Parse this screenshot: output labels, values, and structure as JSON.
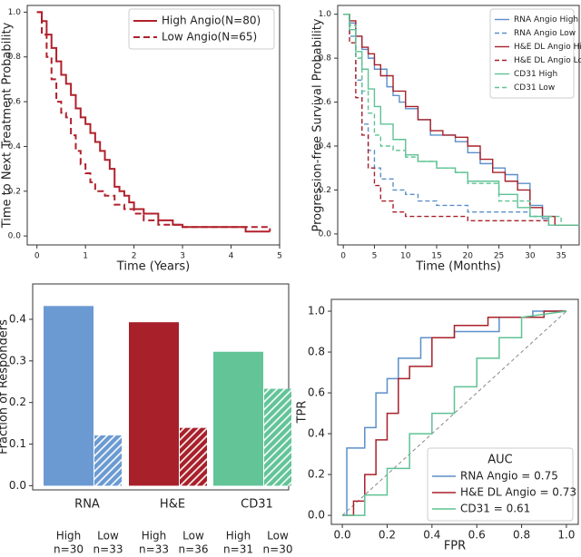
{
  "chart_data": [
    {
      "type": "line",
      "drawstyle": "steps-post",
      "xlabel": "Time (Years)",
      "ylabel": "Time to Next Treatment Probability",
      "xlim": [
        -0.2,
        5.0
      ],
      "ylim": [
        -0.04,
        1.03
      ],
      "xticks": [
        0,
        1,
        2,
        3,
        4,
        5
      ],
      "yticks": [
        {
          "value": 0,
          "label": "0.0"
        },
        0.2,
        0.4,
        0.6,
        0.8,
        {
          "value": 1,
          "label": "1.0"
        }
      ],
      "legend": "upper right",
      "series": [
        {
          "name": "High Angio(N=80)",
          "color": "#b0202b",
          "dashed": false,
          "x": [
            0,
            0.1,
            0.2,
            0.3,
            0.4,
            0.5,
            0.6,
            0.7,
            0.8,
            0.9,
            1.0,
            1.1,
            1.2,
            1.3,
            1.4,
            1.5,
            1.6,
            1.7,
            1.8,
            1.9,
            2.0,
            2.2,
            2.5,
            2.8,
            3.0,
            4.3,
            4.8
          ],
          "values": [
            1.0,
            0.96,
            0.9,
            0.84,
            0.78,
            0.72,
            0.68,
            0.63,
            0.57,
            0.53,
            0.5,
            0.46,
            0.42,
            0.38,
            0.34,
            0.3,
            0.22,
            0.2,
            0.18,
            0.15,
            0.12,
            0.1,
            0.07,
            0.05,
            0.04,
            0.02,
            0.02
          ]
        },
        {
          "name": "Low Angio(N=65)",
          "color": "#b0202b",
          "dashed": true,
          "x": [
            0,
            0.1,
            0.2,
            0.3,
            0.4,
            0.5,
            0.6,
            0.7,
            0.8,
            0.9,
            1.0,
            1.1,
            1.2,
            1.4,
            1.6,
            1.8,
            2.0,
            2.2,
            2.5,
            3.0,
            3.5,
            4.0,
            4.8
          ],
          "values": [
            1.0,
            0.9,
            0.8,
            0.7,
            0.6,
            0.55,
            0.53,
            0.45,
            0.38,
            0.32,
            0.28,
            0.24,
            0.2,
            0.18,
            0.14,
            0.12,
            0.1,
            0.07,
            0.05,
            0.04,
            0.04,
            0.04,
            0.02
          ]
        }
      ]
    },
    {
      "type": "line",
      "drawstyle": "steps-post",
      "xlabel": "Time (Months)",
      "ylabel": "Progression-free Survival Probability",
      "xlim": [
        -0.9,
        37.9
      ],
      "ylim": [
        -0.05,
        1.04
      ],
      "xticks": [
        0,
        5,
        10,
        15,
        20,
        25,
        30,
        35
      ],
      "yticks": [
        {
          "value": 0,
          "label": "0.0"
        },
        0.2,
        0.4,
        0.6,
        0.8,
        {
          "value": 1,
          "label": "1.0"
        }
      ],
      "legend": "upper right",
      "series": [
        {
          "name": "RNA Angio High",
          "color": "#5b8fc9",
          "dashed": false,
          "x": [
            0,
            1,
            2,
            3,
            4,
            5,
            7,
            8,
            9,
            10,
            12,
            14,
            16,
            18,
            20,
            22,
            24,
            26,
            28,
            30,
            32,
            33
          ],
          "values": [
            1,
            0.96,
            0.9,
            0.84,
            0.8,
            0.75,
            0.67,
            0.63,
            0.6,
            0.57,
            0.52,
            0.45,
            0.45,
            0.42,
            0.37,
            0.32,
            0.3,
            0.27,
            0.23,
            0.13,
            0.07,
            0.07
          ]
        },
        {
          "name": "RNA Angio Low",
          "color": "#5b8fc9",
          "dashed": true,
          "x": [
            0,
            1,
            2,
            3,
            4,
            5,
            6,
            8,
            10,
            12,
            15,
            20,
            25,
            30,
            33
          ],
          "values": [
            1,
            0.9,
            0.7,
            0.5,
            0.38,
            0.3,
            0.25,
            0.2,
            0.18,
            0.15,
            0.13,
            0.1,
            0.1,
            0.08,
            0.08
          ]
        },
        {
          "name": "H&E DL Angio High",
          "color": "#a8202a",
          "dashed": false,
          "x": [
            0,
            1,
            2,
            3,
            4,
            5,
            6,
            8,
            10,
            12,
            14,
            16,
            18,
            20,
            22,
            24,
            26,
            28,
            30,
            32,
            34,
            38
          ],
          "values": [
            1,
            0.97,
            0.9,
            0.85,
            0.82,
            0.77,
            0.72,
            0.65,
            0.58,
            0.52,
            0.47,
            0.45,
            0.44,
            0.4,
            0.34,
            0.28,
            0.24,
            0.2,
            0.12,
            0.08,
            0.04,
            0.04
          ]
        },
        {
          "name": "H&E DL Angio Low",
          "color": "#a8202a",
          "dashed": true,
          "x": [
            0,
            1,
            2,
            3,
            4,
            5,
            6,
            8,
            10,
            15,
            20,
            25,
            30,
            33
          ],
          "values": [
            1,
            0.87,
            0.62,
            0.45,
            0.3,
            0.22,
            0.15,
            0.1,
            0.08,
            0.08,
            0.06,
            0.06,
            0.06,
            0.04
          ]
        },
        {
          "name": "CD31 High",
          "color": "#5fc294",
          "dashed": false,
          "x": [
            0,
            1,
            2,
            3,
            4,
            5,
            6,
            8,
            10,
            12,
            15,
            18,
            20,
            25,
            28,
            30,
            33,
            38
          ],
          "values": [
            1,
            0.93,
            0.83,
            0.75,
            0.66,
            0.58,
            0.5,
            0.43,
            0.36,
            0.33,
            0.3,
            0.28,
            0.24,
            0.18,
            0.12,
            0.08,
            0.04,
            0.04
          ]
        },
        {
          "name": "CD31 Low",
          "color": "#5fc294",
          "dashed": true,
          "x": [
            0,
            1,
            2,
            3,
            4,
            5,
            6,
            8,
            10,
            12,
            15,
            18,
            20,
            25,
            30,
            35
          ],
          "values": [
            1,
            0.95,
            0.8,
            0.65,
            0.55,
            0.45,
            0.4,
            0.38,
            0.35,
            0.33,
            0.3,
            0.28,
            0.23,
            0.15,
            0.08,
            0.05
          ]
        }
      ]
    },
    {
      "type": "bar",
      "ylabel": "Fraction of Responders",
      "categories": [
        "RNA",
        "H&E",
        "CD31"
      ],
      "colors": [
        "#6b9ad2",
        "#a8202a",
        "#62c497"
      ],
      "ylim": [
        -0.01,
        0.485
      ],
      "yticks": [
        {
          "value": 0,
          "label": "0.0"
        },
        0.1,
        0.2,
        0.3,
        0.4
      ],
      "series": [
        {
          "name": "High",
          "hatch": false,
          "values": [
            0.432,
            0.393,
            0.322
          ],
          "n_labels": [
            "n=30",
            "n=33",
            "n=31"
          ]
        },
        {
          "name": "Low",
          "hatch": true,
          "values": [
            0.121,
            0.139,
            0.233
          ],
          "n_labels": [
            "n=33",
            "n=36",
            "n=30"
          ]
        }
      ]
    },
    {
      "type": "line",
      "drawstyle": "default",
      "xlabel": "FPR",
      "ylabel": "TPR",
      "diagonal": true,
      "xlim": [
        -0.049,
        1.053
      ],
      "ylim": [
        -0.044,
        1.058
      ],
      "xticks": [
        {
          "value": 0,
          "label": "0.0"
        },
        0.2,
        0.4,
        0.6,
        0.8,
        {
          "value": 1,
          "label": "1.0"
        }
      ],
      "yticks": [
        {
          "value": 0,
          "label": "0.0"
        },
        0.2,
        0.4,
        0.6,
        0.8,
        {
          "value": 1,
          "label": "1.0"
        }
      ],
      "legend": "lower right",
      "legend_title": "AUC",
      "series": [
        {
          "name": "RNA Angio = 0.75",
          "color": "#5b8fc9",
          "dashed": false,
          "x": [
            0,
            0.02,
            0.02,
            0.1,
            0.1,
            0.15,
            0.15,
            0.2,
            0.2,
            0.25,
            0.25,
            0.35,
            0.35,
            0.5,
            0.5,
            0.7,
            0.7,
            0.85,
            0.85,
            1.0
          ],
          "values": [
            0,
            0,
            0.33,
            0.33,
            0.43,
            0.43,
            0.6,
            0.6,
            0.67,
            0.67,
            0.77,
            0.77,
            0.87,
            0.87,
            0.9,
            0.9,
            0.97,
            0.97,
            1,
            1
          ]
        },
        {
          "name": "H&E DL Angio = 0.73",
          "color": "#a8202a",
          "dashed": false,
          "x": [
            0,
            0.05,
            0.05,
            0.1,
            0.1,
            0.15,
            0.15,
            0.2,
            0.2,
            0.25,
            0.25,
            0.3,
            0.3,
            0.4,
            0.4,
            0.5,
            0.5,
            0.65,
            0.65,
            0.9,
            0.9,
            1.0
          ],
          "values": [
            0,
            0,
            0.07,
            0.07,
            0.2,
            0.2,
            0.37,
            0.37,
            0.5,
            0.5,
            0.67,
            0.67,
            0.73,
            0.73,
            0.87,
            0.87,
            0.93,
            0.93,
            0.97,
            0.97,
            1,
            1
          ]
        },
        {
          "name": "CD31 = 0.61",
          "color": "#5fc294",
          "dashed": false,
          "x": [
            0,
            0.1,
            0.1,
            0.2,
            0.2,
            0.3,
            0.3,
            0.4,
            0.4,
            0.5,
            0.5,
            0.6,
            0.6,
            0.7,
            0.7,
            0.8,
            0.8,
            1.0
          ],
          "values": [
            0,
            0,
            0.1,
            0.1,
            0.23,
            0.23,
            0.4,
            0.4,
            0.5,
            0.5,
            0.63,
            0.63,
            0.77,
            0.77,
            0.87,
            0.87,
            0.97,
            1.0
          ]
        }
      ]
    }
  ]
}
